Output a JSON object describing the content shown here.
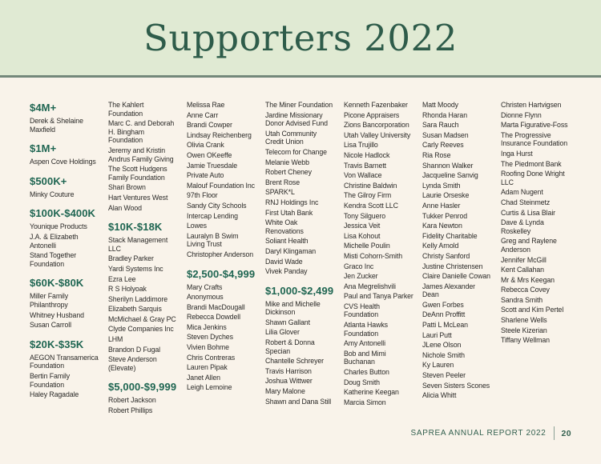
{
  "page": {
    "title": "Supporters 2022",
    "footer": {
      "report_label": "SAPREA ANNUAL REPORT 2022",
      "page_number": "20"
    },
    "colors": {
      "band_background": "#e0ead3",
      "band_line": "#74887a",
      "page_background": "#f9f3ea",
      "title_green": "#2e5c4a",
      "tier_green": "#1e6551",
      "name_text": "#2b2a28"
    }
  },
  "columns": [
    {
      "blocks": [
        {
          "tier": "$4M+",
          "names": [
            "Derek & Shelaine Maxfield"
          ]
        },
        {
          "tier": "$1M+",
          "names": [
            "Aspen Cove Holdings"
          ]
        },
        {
          "tier": "$500K+",
          "names": [
            "Minky Couture"
          ]
        },
        {
          "tier": "$100K-$400K",
          "names": [
            "Younique Products",
            "J.A. & Elizabeth Antonelli",
            "Stand Together Foundation"
          ]
        },
        {
          "tier": "$60K-$80K",
          "names": [
            "Miller Family Philanthropy",
            "Whitney Husband",
            "Susan Carroll"
          ]
        },
        {
          "tier": "$20K-$35K",
          "names": [
            "AEGON Transamerica Foundation",
            "Bertin Family Foundation",
            "Haley Ragadale"
          ]
        }
      ]
    },
    {
      "blocks": [
        {
          "tier": null,
          "names": [
            "The Kahlert Foundation",
            "Marc C. and Deborah H. Bingham Foundation",
            "Jeremy and Kristin Andrus Family Giving",
            "The Scott Hudgens Family Foundation",
            "Shari Brown",
            "Hart Ventures West",
            "Alan Wood"
          ]
        },
        {
          "tier": "$10K-$18K",
          "names": [
            "Stack Management LLC",
            "Bradley Parker",
            "Yardi Systems Inc",
            "Ezra Lee",
            "R S Holyoak",
            "Sherilyn Laddimore",
            "Elizabeth Sarquis",
            "McMichael & Gray PC",
            "Clyde Companies Inc",
            "LHM",
            "Brandon D Fugal",
            "Steve Anderson (Elevate)"
          ]
        },
        {
          "tier": "$5,000-$9,999",
          "names": [
            "Robert Jackson",
            "Robert Phillips"
          ]
        }
      ]
    },
    {
      "blocks": [
        {
          "tier": null,
          "names": [
            "Melissa Rae",
            "Anne Carr",
            "Brandi Cowper",
            "Lindsay Reichenberg",
            "Olivia Crank",
            "Owen OKeeffe",
            "Jamie Truesdale",
            "Private Auto",
            "Malouf Foundation Inc",
            "97th Floor",
            "Sandy City Schools",
            "Intercap Lending",
            "Lowes",
            "Lauralyn B Swim Living Trust",
            "Christopher Anderson"
          ]
        },
        {
          "tier": "$2,500-$4,999",
          "names": [
            "Mary Crafts",
            "Anonymous",
            "Brandi MacDougall",
            "Rebecca Dowdell",
            "Mica Jenkins",
            "Steven Dyches",
            "Vivien Bohme",
            "Chris Contreras",
            "Lauren Pipak",
            "Janet Allen",
            "Leigh Lemoine"
          ]
        }
      ]
    },
    {
      "blocks": [
        {
          "tier": null,
          "names": [
            "The Miner Foundation",
            "Jardine Missionary Donor Advised Fund",
            "Utah Community Credit Union",
            "Telecom for Change",
            "Melanie Webb",
            "Robert Cheney",
            "Brent Rose",
            "SPARK*L",
            "RNJ Holdings Inc",
            "First Utah Bank",
            "White Oak Renovations",
            "Soliant Health",
            "Daryl Klingaman",
            "David Wade",
            "Vivek Panday"
          ]
        },
        {
          "tier": "$1,000-$2,499",
          "names": [
            "Mike and Michelle Dickinson",
            "Shawn Gallant",
            "Lilia Glover",
            "Robert & Donna Specian",
            "Chantelle Schreyer",
            "Travis Harrison",
            "Joshua Wittwer",
            "Mary Malone",
            "Shawn and Dana Still"
          ]
        }
      ]
    },
    {
      "blocks": [
        {
          "tier": null,
          "names": [
            "Kenneth Fazenbaker",
            "Picone Appraisers",
            "Zions Bancorporation",
            "Utah Valley University",
            "Lisa Trujillo",
            "Nicole Hadlock",
            "Travis Barnett",
            "Von Wallace",
            "Christine Baldwin",
            "The Gilroy Firm",
            "Kendra Scott LLC",
            "Tony Silguero",
            "Jessica Veit",
            "Lisa Kohout",
            "Michelle Poulin",
            "Misti Cohorn-Smith",
            "Graco Inc",
            "Jen Zucker",
            "Ana Megrelishvili",
            "Paul and Tanya Parker",
            "CVS Health Foundation",
            "Atlanta Hawks Foundation",
            "Amy Antonelli",
            "Bob and Mimi Buchanan",
            "Charles Button",
            "Doug Smith",
            "Katherine Keegan",
            "Marcia Simon"
          ]
        }
      ]
    },
    {
      "blocks": [
        {
          "tier": null,
          "names": [
            "Matt Moody",
            "Rhonda Haran",
            "Sara Rauch",
            "Susan Madsen",
            "Carly Reeves",
            "Ria Rose",
            "Shannon Walker",
            "Jacqueline Sanvig",
            "Lynda Smith",
            "Laurie Orseske",
            "Anne Hasler",
            "Tukker Penrod",
            "Kara Newton",
            "Fidelity Charitable",
            "Kelly Arnold",
            "Christy Sanford",
            "Justine Christensen",
            "Claire Danielle Cowan",
            "James Alexander Dean",
            "Gwen Forbes",
            "DeAnn Proffitt",
            "Patti L McLean",
            "Lauri Putt",
            "JLene Olson",
            "Nichole Smith",
            "Ky Lauren",
            "Steven Peeler",
            "Seven Sisters Scones",
            "Alicia Whitt"
          ]
        }
      ]
    },
    {
      "blocks": [
        {
          "tier": null,
          "names": [
            "Christen Hartvigsen",
            "Dionne Flynn",
            "Marta Figurative-Foss",
            "The Progressive Insurance Foundation",
            "Inga Hurst",
            "The Piedmont Bank",
            "Roofing Done Wright LLC",
            "Adam Nugent",
            "Chad Steinmetz",
            "Curtis & Lisa Blair",
            "Dave & Lynda Roskelley",
            "Greg and Raylene Anderson",
            "Jennifer McGill",
            "Kent Callahan",
            "Mr & Mrs Keegan",
            "Rebecca Covey",
            "Sandra Smith",
            "Scott and Kim Pertel",
            "Sharlene Wells",
            "Steele Kizerian",
            "Tiffany Wellman"
          ]
        }
      ]
    }
  ]
}
